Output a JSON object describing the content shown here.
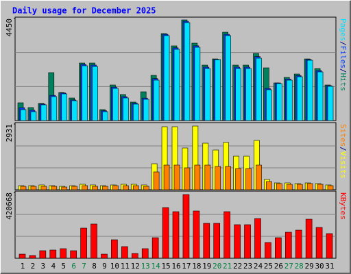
{
  "chart_data": [
    {
      "type": "bar",
      "title": "Daily usage for December 2025",
      "categories": [
        "1",
        "2",
        "3",
        "4",
        "5",
        "6",
        "7",
        "8",
        "9",
        "10",
        "11",
        "12",
        "13",
        "14",
        "15",
        "16",
        "17",
        "18",
        "19",
        "20",
        "21",
        "22",
        "23",
        "24",
        "25",
        "26",
        "27",
        "28",
        "29",
        "30",
        "31"
      ],
      "highlight": [
        5,
        6,
        12,
        13,
        19,
        20,
        26,
        27
      ],
      "highlight_color": "#008040",
      "separator": "/",
      "ylim": [
        0,
        4450
      ],
      "yticks": [
        4450
      ],
      "grid": true,
      "series": [
        {
          "name": "Hits",
          "color": "#00805c",
          "values": [
            776,
            567,
            746,
            2090,
            1224,
            985,
            2508,
            2508,
            478,
            1552,
            1135,
            806,
            1254,
            1971,
            3793,
            3256,
            4390,
            3375,
            2418,
            2687,
            3852,
            2418,
            2418,
            2926,
            2299,
            1642,
            1881,
            2030,
            2687,
            2269,
            1552
          ]
        },
        {
          "name": "Files",
          "color": "#0040ff",
          "values": [
            560,
            450,
            720,
            1100,
            1200,
            900,
            2450,
            2420,
            430,
            1460,
            1040,
            760,
            980,
            1830,
            3760,
            3170,
            4330,
            3260,
            2330,
            2670,
            3760,
            2330,
            2330,
            2790,
            1400,
            1640,
            1810,
            1960,
            2660,
            2180,
            1520
          ]
        },
        {
          "name": "Pages",
          "color": "#00e0ff",
          "values": [
            478,
            388,
            687,
            1045,
            1165,
            866,
            2389,
            2359,
            388,
            1404,
            986,
            717,
            926,
            1762,
            3704,
            3106,
            4271,
            3196,
            2270,
            2658,
            3704,
            2270,
            2270,
            2718,
            1344,
            1613,
            1762,
            1912,
            2628,
            2121,
            1493
          ]
        }
      ]
    },
    {
      "type": "bar",
      "ylim": [
        0,
        2931
      ],
      "yticks": [
        2931
      ],
      "grid": true,
      "series": [
        {
          "name": "Visits",
          "color": "#ffff00",
          "values": [
            183,
            183,
            214,
            183,
            153,
            183,
            244,
            214,
            183,
            214,
            244,
            244,
            214,
            1160,
            2809,
            2809,
            1862,
            2839,
            2076,
            1771,
            2107,
            1496,
            1496,
            2198,
            458,
            305,
            305,
            275,
            305,
            275,
            214
          ]
        },
        {
          "name": "Sites",
          "color": "#ff8000",
          "values": [
            153,
            153,
            153,
            153,
            122,
            153,
            183,
            153,
            153,
            183,
            183,
            183,
            153,
            794,
            1099,
            1099,
            977,
            1099,
            1099,
            1038,
            1038,
            946,
            946,
            1099,
            366,
            275,
            244,
            244,
            275,
            244,
            183
          ]
        }
      ]
    },
    {
      "type": "bar",
      "ylim": [
        0,
        420668
      ],
      "yticks": [
        420668
      ],
      "grid": true,
      "series": [
        {
          "name": "KBytes",
          "color": "#ff0000",
          "values": [
            26292,
            17528,
            48202,
            52584,
            61348,
            48202,
            192808,
            219100,
            26292,
            118314,
            74494,
            30674,
            61348,
            131460,
            324268,
            297976,
            407526,
            302358,
            223482,
            223482,
            297976,
            214718,
            214718,
            254156,
            100786,
            131460,
            166516,
            179662,
            249774,
            197190,
            157752
          ]
        }
      ]
    }
  ]
}
